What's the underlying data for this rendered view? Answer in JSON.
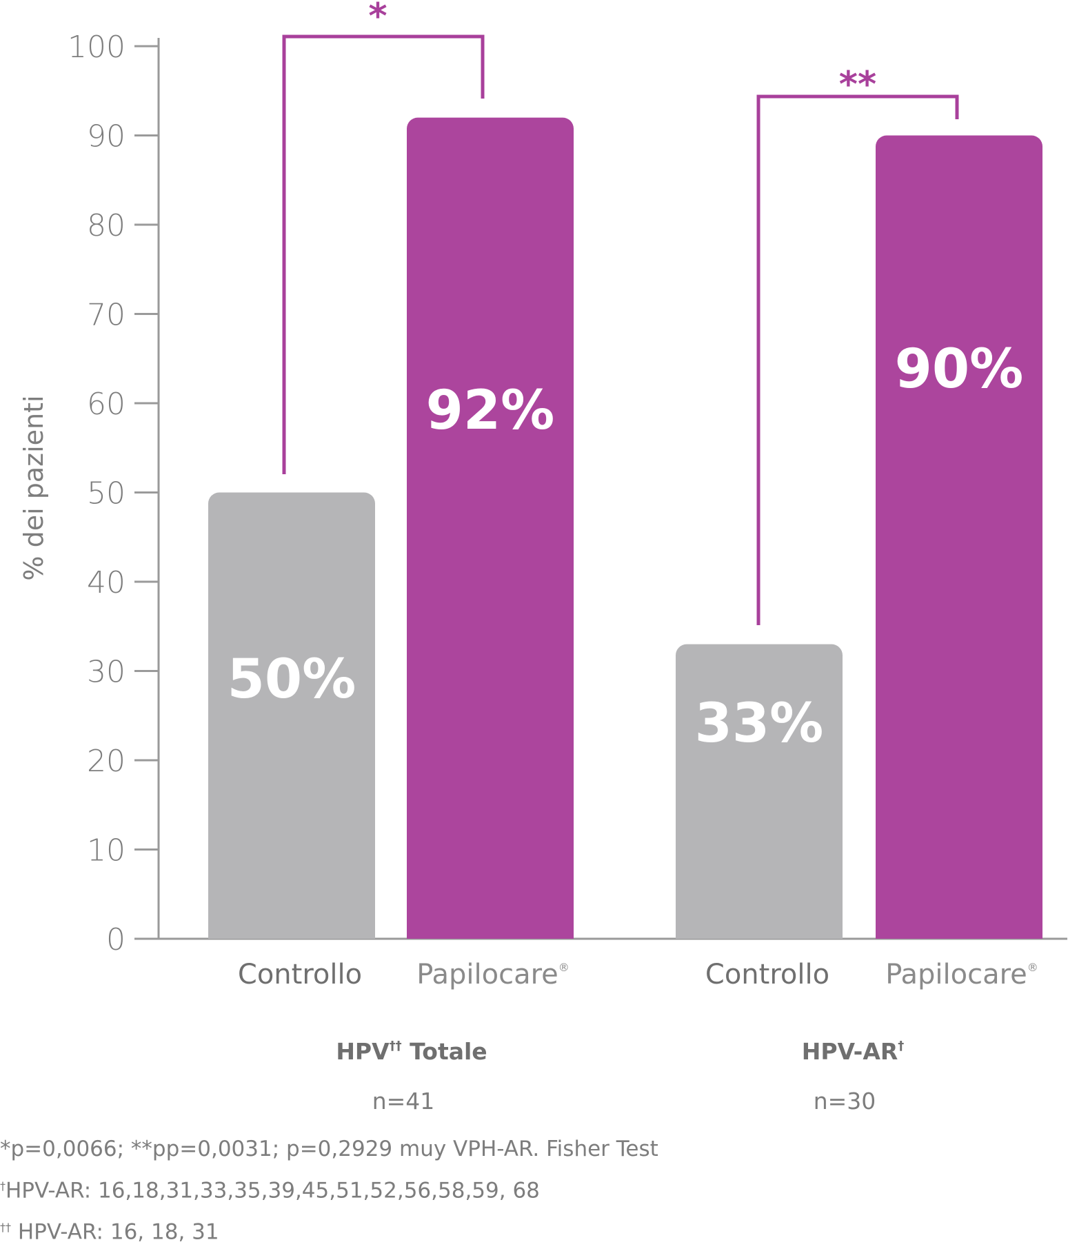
{
  "chart_data": {
    "type": "bar",
    "ylabel": "% dei pazienti",
    "ylim": [
      0,
      100
    ],
    "yticks": [
      0,
      10,
      20,
      30,
      40,
      50,
      60,
      70,
      80,
      90,
      100
    ],
    "groups": [
      {
        "label": "HPV",
        "label_sup": "††",
        "label_suffix": " Totale",
        "n": "n=41",
        "bars": [
          {
            "category": "Controllo",
            "value": 50,
            "value_label": "50%",
            "color": "#b5b5b7"
          },
          {
            "category": "Papilocare",
            "category_mark": "®",
            "value": 92,
            "value_label": "92%",
            "color": "#ac459d"
          }
        ],
        "significance": "*"
      },
      {
        "label": "HPV-AR",
        "label_sup": "†",
        "label_suffix": "",
        "n": "n=30",
        "bars": [
          {
            "category": "Controllo",
            "value": 33,
            "value_label": "33%",
            "color": "#b5b5b7"
          },
          {
            "category": "Papilocare",
            "category_mark": "®",
            "value": 90,
            "value_label": "90%",
            "color": "#ac459d"
          }
        ],
        "significance": "**"
      }
    ],
    "grid": false,
    "colors": {
      "control": "#b5b5b7",
      "treatment": "#ac459d",
      "axis": "#9a9a9a",
      "bracket": "#a8409b"
    }
  },
  "footnotes": {
    "line1": "*p=0,0066; **pp=0,0031; p=0,2929 muy VPH-AR. Fisher Test",
    "line2_mark": "†",
    "line2": "HPV-AR: 16,18,31,33,35,39,45,51,52,56,58,59, 68",
    "line3_mark": "††",
    "line3": " HPV-AR: 16, 18, 31"
  }
}
